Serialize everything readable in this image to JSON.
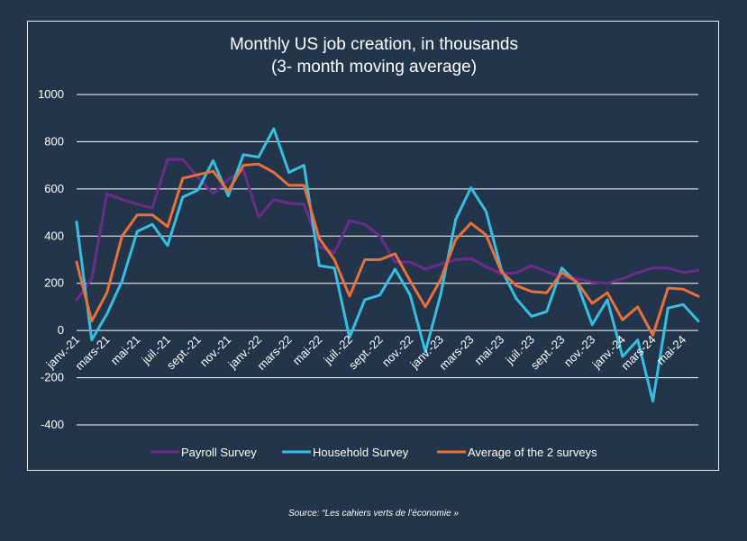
{
  "chart_data": {
    "type": "line",
    "title": "Monthly US job creation, in thousands",
    "subtitle": "(3- month moving average)",
    "xlabel": "",
    "ylabel": "",
    "ylim": [
      -400,
      1000
    ],
    "yticks": [
      -400,
      -200,
      0,
      200,
      400,
      600,
      800,
      1000
    ],
    "grid": true,
    "legend_position": "bottom",
    "x": [
      "janv.-21",
      "févr.-21",
      "mars-21",
      "avr.-21",
      "mai-21",
      "juin-21",
      "juil.-21",
      "août-21",
      "sept.-21",
      "oct.-21",
      "nov.-21",
      "déc.-21",
      "janv.-22",
      "févr.-22",
      "mars-22",
      "avr.-22",
      "mai-22",
      "juin-22",
      "juil.-22",
      "août-22",
      "sept.-22",
      "oct.-22",
      "nov.-22",
      "déc.-22",
      "janv.-23",
      "févr.-23",
      "mars-23",
      "avr.-23",
      "mai-23",
      "juin-23",
      "juil.-23",
      "août-23",
      "sept.-23",
      "oct.-23",
      "nov.-23",
      "déc.-23",
      "janv.-24",
      "févr.-24",
      "mars-24",
      "avr.-24",
      "mai-24",
      "juin-24"
    ],
    "xtick_labels": [
      "janv.-21",
      "mars-21",
      "mai-21",
      "juil.-21",
      "sept.-21",
      "nov.-21",
      "janv.-22",
      "mars-22",
      "mai-22",
      "juil.-22",
      "sept.-22",
      "nov.-22",
      "janv.-23",
      "mars-23",
      "mai-23",
      "juil.-23",
      "sept.-23",
      "nov.-23",
      "janv.-24",
      "mars-24",
      "mai-24"
    ],
    "series": [
      {
        "name": "Payroll Survey",
        "color": "#6b2c8e",
        "values": [
          130,
          220,
          580,
          555,
          535,
          520,
          725,
          725,
          650,
          580,
          640,
          680,
          480,
          555,
          540,
          535,
          355,
          330,
          465,
          450,
          400,
          290,
          290,
          260,
          280,
          300,
          305,
          270,
          240,
          245,
          275,
          250,
          225,
          220,
          205,
          200,
          220,
          245,
          265,
          265,
          245,
          255
        ]
      },
      {
        "name": "Household Survey",
        "color": "#36bfe0",
        "values": [
          460,
          -40,
          70,
          210,
          420,
          450,
          360,
          565,
          595,
          720,
          570,
          745,
          735,
          855,
          670,
          700,
          275,
          265,
          -30,
          130,
          150,
          260,
          150,
          -90,
          150,
          470,
          605,
          505,
          260,
          135,
          60,
          80,
          265,
          200,
          25,
          130,
          -110,
          -40,
          -300,
          95,
          110,
          40
        ]
      },
      {
        "name": "Average of the 2 surveys",
        "color": "#e8703a",
        "values": [
          290,
          40,
          160,
          400,
          490,
          490,
          440,
          645,
          660,
          675,
          590,
          700,
          705,
          670,
          615,
          615,
          390,
          300,
          145,
          300,
          300,
          325,
          210,
          100,
          215,
          385,
          455,
          405,
          250,
          190,
          165,
          160,
          245,
          205,
          115,
          160,
          45,
          100,
          -20,
          180,
          175,
          145
        ]
      }
    ]
  },
  "source": "Source: “Les cahiers verts de l’économie »"
}
